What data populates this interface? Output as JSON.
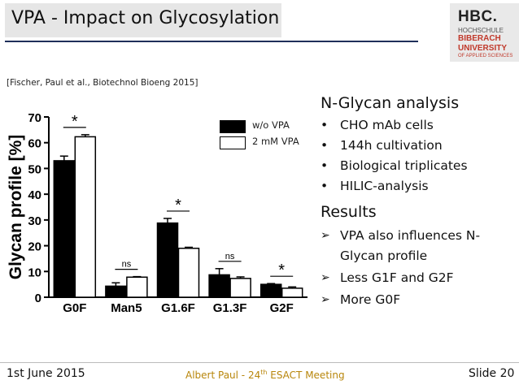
{
  "slide": {
    "title": "VPA - Impact on Glycosylation",
    "citation": "[Fischer, Paul et al., Biotechnol Bioeng 2015]"
  },
  "logo": {
    "line1": "HBC.",
    "line2": "HOCHSCHULE",
    "line3": "BIBERACH",
    "line4": "UNIVERSITY",
    "line5": "OF APPLIED SCIENCES"
  },
  "right_panel": {
    "heading": "N-Glycan analysis",
    "bullets": [
      "CHO mAb cells",
      "144h cultivation",
      "Biological triplicates",
      "HILIC-analysis"
    ],
    "results_heading": "Results",
    "results": [
      "VPA also influences N-Glycan profile",
      "Less G1F and G2F",
      "More G0F"
    ]
  },
  "footer": {
    "date": "1st June 2015",
    "center_prefix": "Albert Paul - 24",
    "center_sup": "th",
    "center_suffix": " ESACT Meeting",
    "slide": "Slide 20"
  },
  "colors": {
    "series_wo_vpa": "#000000",
    "series_vpa": "#ffffff",
    "footer_accent": "#b8860b",
    "logo_accent": "#c0392b"
  },
  "chart_data": {
    "type": "bar",
    "ylabel": "Glycan profile [%]",
    "xlabel": "",
    "categories": [
      "G0F",
      "Man5",
      "G1.6F",
      "G1.3F",
      "G2F"
    ],
    "ylim": [
      0,
      70
    ],
    "yticks": [
      0,
      10,
      20,
      30,
      40,
      50,
      60,
      70
    ],
    "series": [
      {
        "name": "w/o VPA",
        "values": [
          53.0,
          4.3,
          28.8,
          8.7,
          5.0
        ],
        "errors": [
          1.8,
          1.3,
          1.8,
          2.4,
          0.3
        ]
      },
      {
        "name": "2 mM VPA",
        "values": [
          62.3,
          7.8,
          19.0,
          7.3,
          3.5
        ],
        "errors": [
          0.8,
          0.2,
          0.4,
          0.6,
          0.5
        ]
      }
    ],
    "significance": [
      "*",
      "ns",
      "*",
      "ns",
      "*"
    ],
    "legend_position": "top-right"
  }
}
